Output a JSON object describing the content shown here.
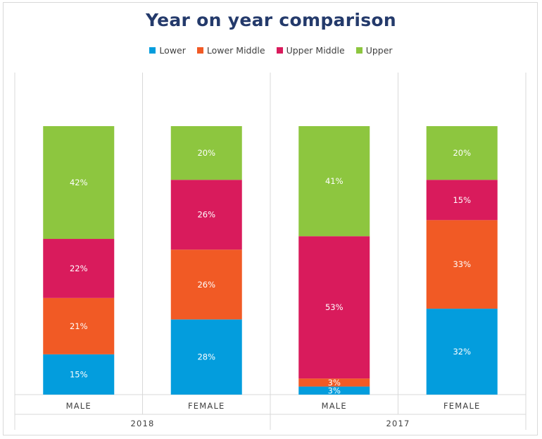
{
  "chart_data": {
    "type": "bar",
    "stacked": true,
    "title": "Year on year comparison",
    "legend_position": "top",
    "categories": [
      "MALE",
      "FEMALE",
      "MALE",
      "FEMALE"
    ],
    "groups": [
      {
        "label": "2018",
        "categories": [
          "MALE",
          "FEMALE"
        ]
      },
      {
        "label": "2017",
        "categories": [
          "MALE",
          "FEMALE"
        ]
      }
    ],
    "series": [
      {
        "name": "Lower",
        "color": "#039ddd",
        "values": [
          15,
          28,
          3,
          32
        ],
        "labels": [
          "15%",
          "28%",
          "3%",
          "32%"
        ]
      },
      {
        "name": "Lower Middle",
        "color": "#f15a25",
        "values": [
          21,
          26,
          3,
          33
        ],
        "labels": [
          "21%",
          "26%",
          "3%",
          "33%"
        ]
      },
      {
        "name": "Upper Middle",
        "color": "#d91b5c",
        "values": [
          22,
          26,
          53,
          15
        ],
        "labels": [
          "22%",
          "26%",
          "53%",
          "15%"
        ]
      },
      {
        "name": "Upper",
        "color": "#8dc63f",
        "values": [
          42,
          20,
          41,
          20
        ],
        "labels": [
          "42%",
          "20%",
          "41%",
          "20%"
        ]
      }
    ],
    "ylim": [
      0,
      100
    ],
    "grid": "vertical separators"
  }
}
